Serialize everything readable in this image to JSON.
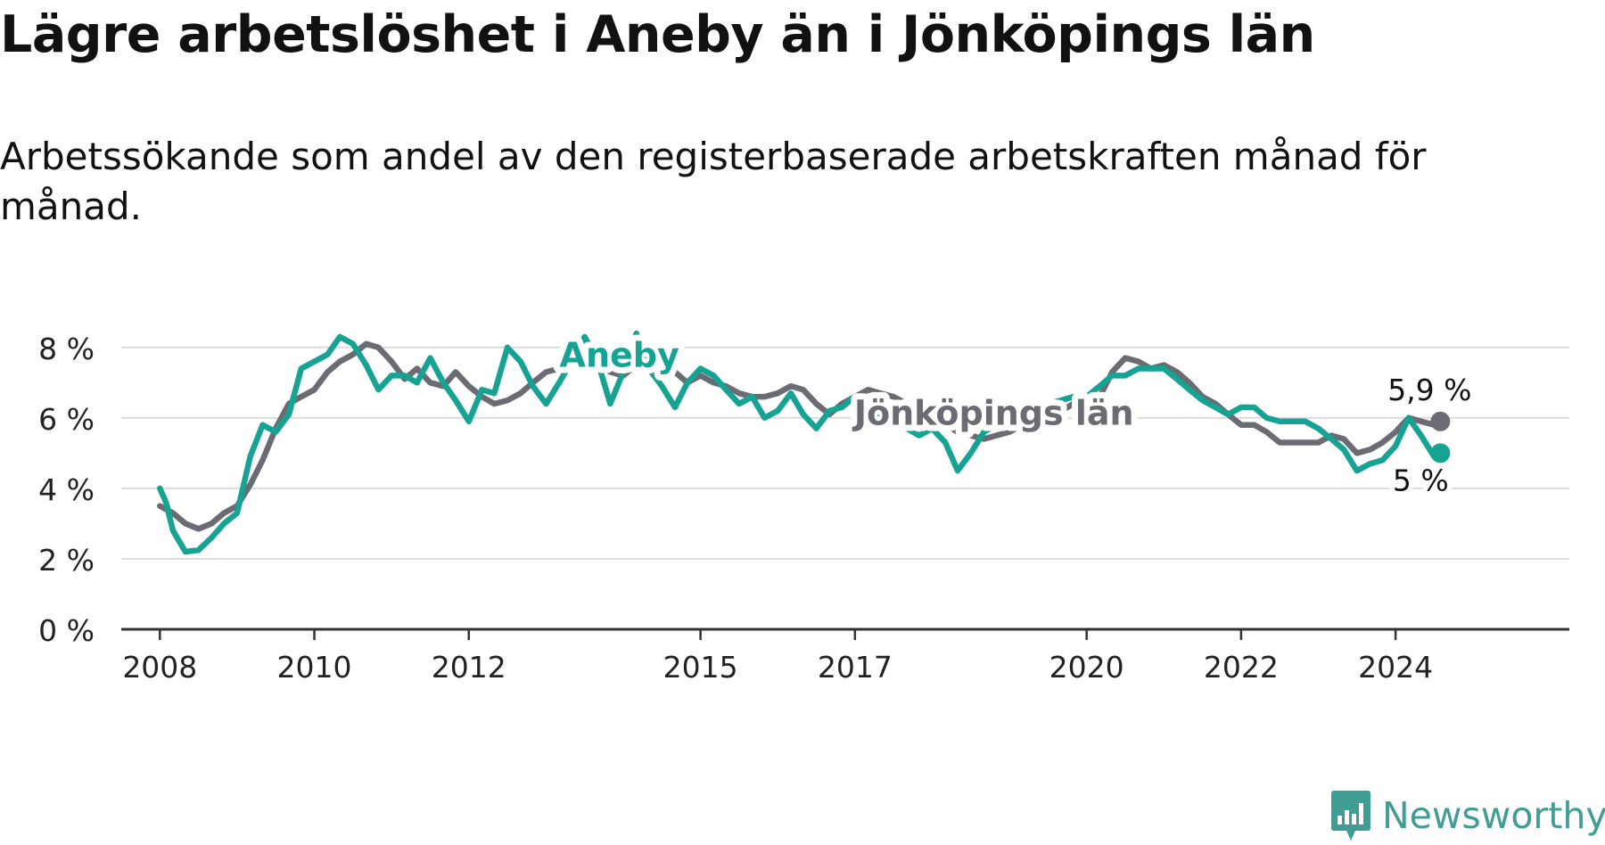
{
  "title": "Lägre arbetslöshet i Aneby än i Jönköpings län",
  "subtitle": "Arbetssökande som andel av den registerbaserade arbetskraften månad för månad.",
  "brand": {
    "name": "Newsworthy",
    "color": "#3f9d93"
  },
  "chart_data": {
    "type": "line",
    "title": "Lägre arbetslöshet i Aneby än i Jönköpings län",
    "subtitle": "Arbetssökande som andel av den registerbaserade arbetskraften månad för månad.",
    "xlabel": "",
    "ylabel": "",
    "xlim": [
      2007.5,
      2026.25
    ],
    "ylim": [
      0,
      8.5
    ],
    "y_ticks": [
      0,
      2,
      4,
      6,
      8
    ],
    "y_tick_labels": [
      "0 %",
      "2 %",
      "4 %",
      "6 %",
      "8 %"
    ],
    "x_ticks": [
      2008,
      2010,
      2012,
      2015,
      2017,
      2020,
      2022,
      2024
    ],
    "x_tick_labels": [
      "2008",
      "2010",
      "2012",
      "2015",
      "2017",
      "2020",
      "2022",
      "2024"
    ],
    "grid": true,
    "series": [
      {
        "name": "Jönköpings län",
        "color": "#6b6b73",
        "label": "Jönköpings län",
        "end_label": "5,9 %",
        "points": [
          [
            2008.0,
            3.5
          ],
          [
            2008.17,
            3.3
          ],
          [
            2008.33,
            3.0
          ],
          [
            2008.5,
            2.85
          ],
          [
            2008.67,
            3.0
          ],
          [
            2008.83,
            3.3
          ],
          [
            2009.0,
            3.5
          ],
          [
            2009.17,
            4.1
          ],
          [
            2009.33,
            4.8
          ],
          [
            2009.5,
            5.7
          ],
          [
            2009.67,
            6.4
          ],
          [
            2009.83,
            6.6
          ],
          [
            2010.0,
            6.8
          ],
          [
            2010.17,
            7.3
          ],
          [
            2010.33,
            7.6
          ],
          [
            2010.5,
            7.8
          ],
          [
            2010.67,
            8.1
          ],
          [
            2010.83,
            8.0
          ],
          [
            2011.0,
            7.6
          ],
          [
            2011.17,
            7.1
          ],
          [
            2011.33,
            7.4
          ],
          [
            2011.5,
            7.0
          ],
          [
            2011.67,
            6.9
          ],
          [
            2011.83,
            7.3
          ],
          [
            2012.0,
            6.9
          ],
          [
            2012.17,
            6.6
          ],
          [
            2012.33,
            6.4
          ],
          [
            2012.5,
            6.5
          ],
          [
            2012.67,
            6.7
          ],
          [
            2012.83,
            7.0
          ],
          [
            2013.0,
            7.3
          ],
          [
            2013.17,
            7.4
          ],
          [
            2013.33,
            7.7
          ],
          [
            2013.5,
            7.9
          ],
          [
            2013.67,
            7.6
          ],
          [
            2013.83,
            7.3
          ],
          [
            2014.0,
            7.2
          ],
          [
            2014.17,
            7.5
          ],
          [
            2014.33,
            7.8
          ],
          [
            2014.5,
            7.6
          ],
          [
            2014.67,
            7.3
          ],
          [
            2014.83,
            7.0
          ],
          [
            2015.0,
            7.2
          ],
          [
            2015.17,
            7.0
          ],
          [
            2015.33,
            6.9
          ],
          [
            2015.5,
            6.7
          ],
          [
            2015.67,
            6.6
          ],
          [
            2015.83,
            6.6
          ],
          [
            2016.0,
            6.7
          ],
          [
            2016.17,
            6.9
          ],
          [
            2016.33,
            6.8
          ],
          [
            2016.5,
            6.4
          ],
          [
            2016.67,
            6.1
          ],
          [
            2016.83,
            6.4
          ],
          [
            2017.0,
            6.6
          ],
          [
            2017.17,
            6.8
          ],
          [
            2017.33,
            6.7
          ],
          [
            2017.5,
            6.6
          ],
          [
            2017.67,
            6.4
          ],
          [
            2017.83,
            6.2
          ],
          [
            2018.0,
            6.0
          ],
          [
            2018.17,
            5.8
          ],
          [
            2018.33,
            5.6
          ],
          [
            2018.5,
            5.5
          ],
          [
            2018.67,
            5.4
          ],
          [
            2018.83,
            5.5
          ],
          [
            2019.0,
            5.6
          ],
          [
            2019.17,
            5.8
          ],
          [
            2019.33,
            5.9
          ],
          [
            2019.5,
            6.0
          ],
          [
            2019.67,
            6.2
          ],
          [
            2019.83,
            6.4
          ],
          [
            2020.0,
            6.6
          ],
          [
            2020.17,
            6.6
          ],
          [
            2020.33,
            7.3
          ],
          [
            2020.5,
            7.7
          ],
          [
            2020.67,
            7.6
          ],
          [
            2020.83,
            7.4
          ],
          [
            2021.0,
            7.5
          ],
          [
            2021.17,
            7.3
          ],
          [
            2021.33,
            7.0
          ],
          [
            2021.5,
            6.6
          ],
          [
            2021.67,
            6.4
          ],
          [
            2021.83,
            6.1
          ],
          [
            2022.0,
            5.8
          ],
          [
            2022.17,
            5.8
          ],
          [
            2022.33,
            5.6
          ],
          [
            2022.5,
            5.3
          ],
          [
            2022.67,
            5.3
          ],
          [
            2022.83,
            5.3
          ],
          [
            2023.0,
            5.3
          ],
          [
            2023.17,
            5.5
          ],
          [
            2023.33,
            5.4
          ],
          [
            2023.5,
            5.0
          ],
          [
            2023.67,
            5.1
          ],
          [
            2023.83,
            5.3
          ],
          [
            2024.0,
            5.6
          ],
          [
            2024.17,
            6.0
          ],
          [
            2024.33,
            5.9
          ],
          [
            2024.5,
            5.8
          ],
          [
            2024.58,
            5.9
          ]
        ]
      },
      {
        "name": "Aneby",
        "color": "#17a394",
        "label": "Aneby",
        "end_label": "5 %",
        "points": [
          [
            2008.0,
            4.0
          ],
          [
            2008.08,
            3.6
          ],
          [
            2008.17,
            2.8
          ],
          [
            2008.33,
            2.2
          ],
          [
            2008.5,
            2.25
          ],
          [
            2008.67,
            2.6
          ],
          [
            2008.83,
            3.0
          ],
          [
            2009.0,
            3.3
          ],
          [
            2009.17,
            4.9
          ],
          [
            2009.33,
            5.8
          ],
          [
            2009.5,
            5.6
          ],
          [
            2009.67,
            6.1
          ],
          [
            2009.83,
            7.4
          ],
          [
            2010.0,
            7.6
          ],
          [
            2010.17,
            7.8
          ],
          [
            2010.33,
            8.3
          ],
          [
            2010.5,
            8.1
          ],
          [
            2010.67,
            7.5
          ],
          [
            2010.83,
            6.8
          ],
          [
            2011.0,
            7.2
          ],
          [
            2011.17,
            7.2
          ],
          [
            2011.33,
            7.0
          ],
          [
            2011.5,
            7.7
          ],
          [
            2011.67,
            7.0
          ],
          [
            2011.83,
            6.5
          ],
          [
            2012.0,
            5.9
          ],
          [
            2012.17,
            6.8
          ],
          [
            2012.33,
            6.7
          ],
          [
            2012.5,
            8.0
          ],
          [
            2012.67,
            7.6
          ],
          [
            2012.83,
            6.9
          ],
          [
            2013.0,
            6.4
          ],
          [
            2013.17,
            7.0
          ],
          [
            2013.33,
            7.6
          ],
          [
            2013.5,
            8.3
          ],
          [
            2013.67,
            7.6
          ],
          [
            2013.83,
            6.4
          ],
          [
            2014.0,
            7.3
          ],
          [
            2014.17,
            8.4
          ],
          [
            2014.33,
            7.4
          ],
          [
            2014.5,
            6.9
          ],
          [
            2014.67,
            6.3
          ],
          [
            2014.83,
            7.0
          ],
          [
            2015.0,
            7.4
          ],
          [
            2015.17,
            7.2
          ],
          [
            2015.33,
            6.8
          ],
          [
            2015.5,
            6.4
          ],
          [
            2015.67,
            6.6
          ],
          [
            2015.83,
            6.0
          ],
          [
            2016.0,
            6.2
          ],
          [
            2016.17,
            6.7
          ],
          [
            2016.33,
            6.1
          ],
          [
            2016.5,
            5.7
          ],
          [
            2016.67,
            6.2
          ],
          [
            2016.83,
            6.3
          ],
          [
            2017.0,
            6.6
          ],
          [
            2017.17,
            6.1
          ],
          [
            2017.33,
            6.0
          ],
          [
            2017.5,
            5.9
          ],
          [
            2017.67,
            5.7
          ],
          [
            2017.83,
            5.5
          ],
          [
            2018.0,
            5.7
          ],
          [
            2018.17,
            5.3
          ],
          [
            2018.33,
            4.5
          ],
          [
            2018.5,
            5.0
          ],
          [
            2018.67,
            5.6
          ],
          [
            2018.83,
            5.8
          ],
          [
            2019.0,
            6.0
          ],
          [
            2019.17,
            6.1
          ],
          [
            2019.33,
            6.3
          ],
          [
            2019.5,
            6.4
          ],
          [
            2019.67,
            6.5
          ],
          [
            2019.83,
            6.6
          ],
          [
            2020.0,
            6.6
          ],
          [
            2020.17,
            6.9
          ],
          [
            2020.33,
            7.2
          ],
          [
            2020.5,
            7.2
          ],
          [
            2020.67,
            7.4
          ],
          [
            2020.83,
            7.4
          ],
          [
            2021.0,
            7.4
          ],
          [
            2021.17,
            7.1
          ],
          [
            2021.33,
            6.8
          ],
          [
            2021.5,
            6.5
          ],
          [
            2021.67,
            6.3
          ],
          [
            2021.83,
            6.1
          ],
          [
            2022.0,
            6.3
          ],
          [
            2022.17,
            6.3
          ],
          [
            2022.33,
            6.0
          ],
          [
            2022.5,
            5.9
          ],
          [
            2022.67,
            5.9
          ],
          [
            2022.83,
            5.9
          ],
          [
            2023.0,
            5.7
          ],
          [
            2023.17,
            5.4
          ],
          [
            2023.33,
            5.1
          ],
          [
            2023.5,
            4.5
          ],
          [
            2023.67,
            4.7
          ],
          [
            2023.83,
            4.8
          ],
          [
            2024.0,
            5.2
          ],
          [
            2024.17,
            6.0
          ],
          [
            2024.33,
            5.5
          ],
          [
            2024.5,
            4.9
          ],
          [
            2024.58,
            5.0
          ]
        ]
      }
    ]
  }
}
